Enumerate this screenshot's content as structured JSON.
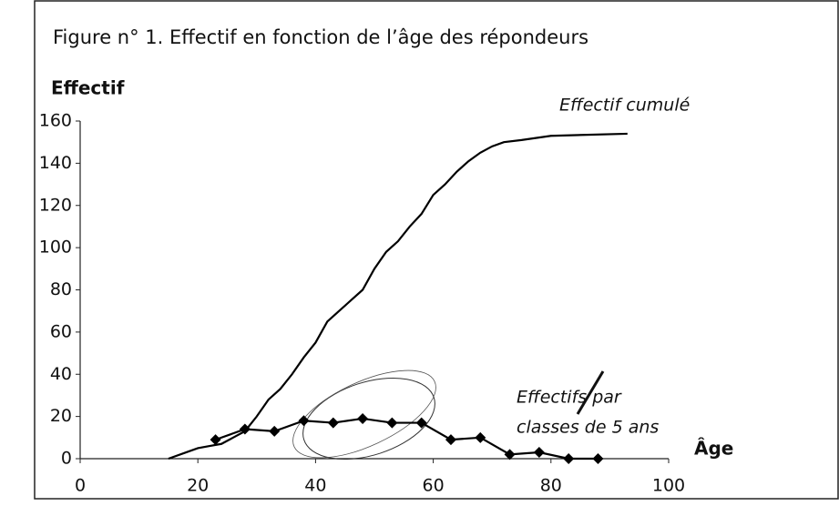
{
  "chart_data": {
    "type": "line",
    "title": "Figure n° 1. Effectif en fonction de l’âge des répondeurs",
    "y_label": "Effectif",
    "x_label": "Âge",
    "annotations": [
      "Effectif cumulé",
      "Effectifs par",
      "classes de 5 ans"
    ],
    "xlim": [
      0,
      100
    ],
    "xticks": [
      0,
      20,
      40,
      60,
      80,
      100
    ],
    "ylim": [
      0,
      160
    ],
    "yticks": [
      0,
      20,
      40,
      60,
      80,
      100,
      120,
      140,
      160
    ],
    "series": [
      {
        "color": "#000000",
        "marker": "none",
        "x": [
          15,
          18,
          20,
          22,
          24,
          26,
          28,
          30,
          32,
          34,
          36,
          38,
          40,
          42,
          44,
          46,
          48,
          50,
          52,
          54,
          56,
          58,
          60,
          62,
          64,
          66,
          68,
          70,
          72,
          75,
          80,
          93
        ],
        "values": [
          0,
          3,
          5,
          6,
          7,
          10,
          13,
          20,
          28,
          33,
          40,
          48,
          55,
          65,
          70,
          75,
          80,
          90,
          98,
          103,
          110,
          116,
          125,
          130,
          136,
          141,
          145,
          148,
          150,
          151,
          153,
          154
        ]
      },
      {
        "color": "#000000",
        "marker": "diamond",
        "x": [
          23,
          28,
          33,
          38,
          43,
          48,
          53,
          58,
          63,
          68,
          73,
          78,
          83,
          88
        ],
        "values": [
          9,
          14,
          13,
          18,
          17,
          19,
          17,
          17,
          9,
          10,
          2,
          3,
          0,
          0
        ]
      }
    ]
  }
}
